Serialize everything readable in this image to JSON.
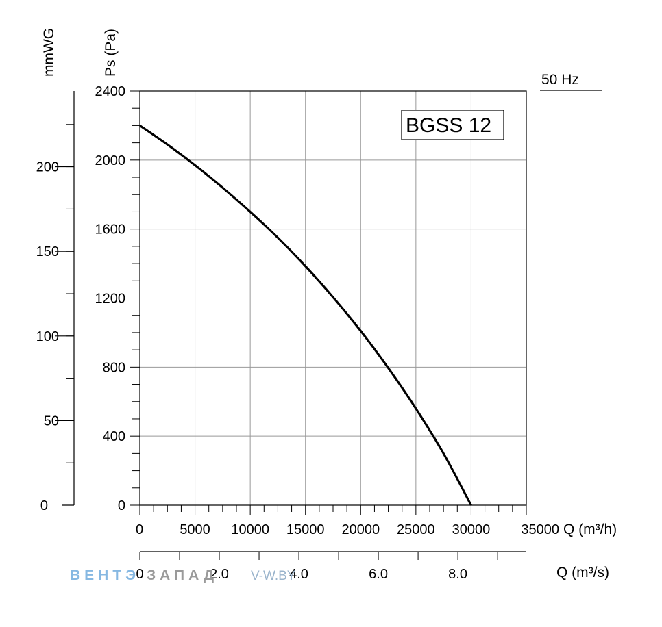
{
  "chart_data": {
    "type": "line",
    "model_label": "BGSS 12",
    "frequency_label": "50 Hz",
    "y_left_label": "mmWG",
    "y_label": "Ps (Pa)",
    "x_label": "Q (m³/h)",
    "x2_label": "Q (m³/s)",
    "xlim": [
      0,
      35000
    ],
    "ylim": [
      0,
      2400
    ],
    "x_ticks": [
      "0",
      "5000",
      "10000",
      "15000",
      "20000",
      "25000",
      "30000",
      "35000"
    ],
    "y_ticks": [
      "0",
      "400",
      "800",
      "1200",
      "1600",
      "2000",
      "2400"
    ],
    "mmwg_ticks": [
      "0",
      "50",
      "100",
      "150",
      "200"
    ],
    "x2_ticks": [
      "0",
      "2.0",
      "4.0",
      "6.0",
      "8.0"
    ],
    "grid": true,
    "series": [
      {
        "x": [
          0,
          2500,
          5000,
          7500,
          10000,
          12500,
          15000,
          17500,
          20000,
          22500,
          25000,
          27500,
          30000
        ],
        "y": [
          2200,
          2090,
          1970,
          1840,
          1700,
          1550,
          1385,
          1205,
          1010,
          795,
          560,
          300,
          0
        ]
      }
    ]
  },
  "watermark": {
    "part1": "ВЕНТЭ",
    "part2": "ЗАПАД",
    "part3": "V-W.BY"
  }
}
